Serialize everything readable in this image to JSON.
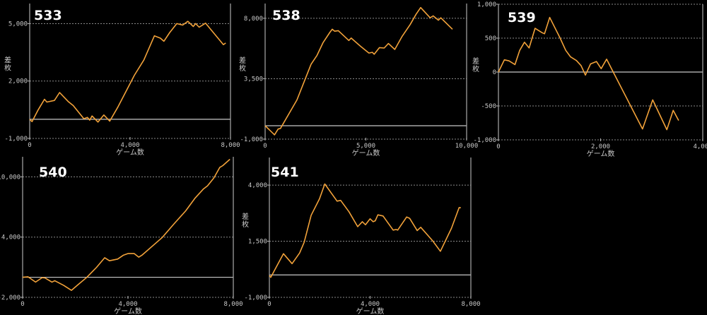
{
  "line_color": "#f2a23a",
  "grid": true,
  "chart_data": [
    {
      "type": "line",
      "title": "533",
      "xlabel": "ゲーム数",
      "ylabel": "差枚",
      "xlim": [
        0,
        8000
      ],
      "ylim": [
        -1000,
        6050
      ],
      "xticks": [
        0,
        4000,
        8000
      ],
      "xtick_labels": [
        "0",
        "4,000",
        "8,000"
      ],
      "yticks": [
        -1000,
        2000,
        5000
      ],
      "ytick_labels": [
        "-1,000",
        "2,000",
        "5,000"
      ],
      "x": [
        0,
        94,
        328,
        590,
        684,
        985,
        1191,
        1529,
        1735,
        2157,
        2298,
        2391,
        2485,
        2720,
        2954,
        3189,
        3517,
        4173,
        4548,
        4970,
        5205,
        5346,
        5580,
        5862,
        6096,
        6302,
        6518,
        6612,
        6753,
        7006,
        7719,
        7812
      ],
      "y": [
        0,
        -120,
        470,
        1045,
        900,
        985,
        1400,
        935,
        715,
        30,
        100,
        -45,
        175,
        -145,
        225,
        -95,
        650,
        2305,
        3100,
        4365,
        4240,
        4080,
        4535,
        5000,
        4925,
        5120,
        4850,
        5000,
        4815,
        5025,
        3900,
        3985
      ]
    },
    {
      "type": "line",
      "title": "538",
      "xlabel": "ゲーム数",
      "ylabel": "差枚",
      "xlim": [
        0,
        10000
      ],
      "ylim": [
        -1000,
        9100
      ],
      "xticks": [
        0,
        5000,
        10000
      ],
      "xtick_labels": [
        "0",
        "5,000",
        "10,000"
      ],
      "yticks": [
        -1000,
        3500,
        8000
      ],
      "ytick_labels": [
        "-1,000",
        "3,500",
        "8,000"
      ],
      "x": [
        0,
        468,
        644,
        760,
        1580,
        1930,
        2280,
        2575,
        2870,
        3220,
        3335,
        3450,
        3630,
        4155,
        4270,
        4740,
        5150,
        5320,
        5415,
        5675,
        5910,
        6120,
        6435,
        6785,
        7200,
        7490,
        7720,
        8190,
        8340,
        8600,
        8720,
        9300
      ],
      "y": [
        0,
        -680,
        -250,
        -200,
        1920,
        3250,
        4580,
        5240,
        6175,
        6970,
        7185,
        7040,
        7080,
        6350,
        6530,
        5910,
        5410,
        5465,
        5325,
        5820,
        5785,
        6120,
        5680,
        6620,
        7540,
        8300,
        8800,
        8035,
        8180,
        7860,
        8035,
        7185
      ]
    },
    {
      "type": "line",
      "title": "539",
      "xlabel": "ゲーム数",
      "ylabel": "差枚",
      "xlim": [
        0,
        4000
      ],
      "ylim": [
        -1000,
        1000
      ],
      "xticks": [
        0,
        2000,
        4000
      ],
      "xtick_labels": [
        "0",
        "2,000",
        "4,000"
      ],
      "yticks": [
        -1000,
        -500,
        0,
        500,
        1000
      ],
      "ytick_labels": [
        "-1,000",
        "-500",
        "0",
        "500",
        "1,000"
      ],
      "x": [
        0,
        116,
        208,
        324,
        416,
        509,
        601,
        717,
        855,
        902,
        1003,
        1202,
        1318,
        1410,
        1526,
        1618,
        1702,
        1803,
        1919,
        2011,
        2118,
        2821,
        3020,
        3297,
        3422,
        3528
      ],
      "y": [
        0,
        180,
        165,
        110,
        320,
        440,
        355,
        645,
        580,
        565,
        805,
        510,
        320,
        225,
        170,
        95,
        -45,
        120,
        155,
        50,
        190,
        -840,
        -410,
        -850,
        -565,
        -715
      ]
    },
    {
      "type": "line",
      "title": "540",
      "xlabel": "ゲーム数",
      "ylabel": "",
      "xlim": [
        0,
        8000
      ],
      "ylim": [
        -2000,
        12000
      ],
      "xticks": [
        0,
        4000,
        8000
      ],
      "xtick_labels": [
        "0",
        "4,000",
        "8,000"
      ],
      "yticks": [
        -2000,
        4000,
        10000
      ],
      "ytick_labels": [
        "-2,000",
        "4,000",
        "10,000"
      ],
      "x": [
        0,
        205,
        490,
        740,
        846,
        1114,
        1220,
        1560,
        1853,
        2094,
        2432,
        2807,
        3118,
        3296,
        3608,
        3830,
        4010,
        4230,
        4410,
        4545,
        5300,
        5747,
        6190,
        6550,
        6860,
        7020,
        7260,
        7485,
        7600,
        7870
      ],
      "y": [
        0,
        50,
        -480,
        -40,
        -60,
        -480,
        -340,
        -810,
        -1300,
        -765,
        -15,
        990,
        1950,
        1645,
        1810,
        2205,
        2370,
        2370,
        2000,
        2230,
        3960,
        5320,
        6610,
        7890,
        8780,
        9110,
        9880,
        10935,
        11120,
        11755
      ]
    },
    {
      "type": "line",
      "title": "541",
      "xlabel": "ゲーム数",
      "ylabel": "差枚",
      "xlim": [
        0,
        8000
      ],
      "ylim": [
        -1000,
        5230
      ],
      "xticks": [
        0,
        4000,
        8000
      ],
      "xtick_labels": [
        "0",
        "4,000",
        "8,000"
      ],
      "yticks": [
        -1000,
        1500,
        4000
      ],
      "ytick_labels": [
        "-1,000",
        "1,500",
        "4,000"
      ],
      "x": [
        0,
        56,
        560,
        900,
        1200,
        1380,
        1660,
        1990,
        2200,
        2690,
        2830,
        3160,
        3505,
        3690,
        3815,
        4000,
        4120,
        4205,
        4310,
        4515,
        4915,
        5030,
        5095,
        5450,
        5570,
        5870,
        6010,
        6480,
        6790,
        7230,
        7535,
        7600
      ],
      "y": [
        -30,
        -105,
        945,
        500,
        975,
        1450,
        2655,
        3390,
        4050,
        3285,
        3320,
        2815,
        2150,
        2370,
        2235,
        2500,
        2370,
        2410,
        2675,
        2625,
        1995,
        2025,
        1995,
        2580,
        2520,
        1975,
        2120,
        1520,
        1050,
        2080,
        3000,
        2990
      ]
    }
  ]
}
